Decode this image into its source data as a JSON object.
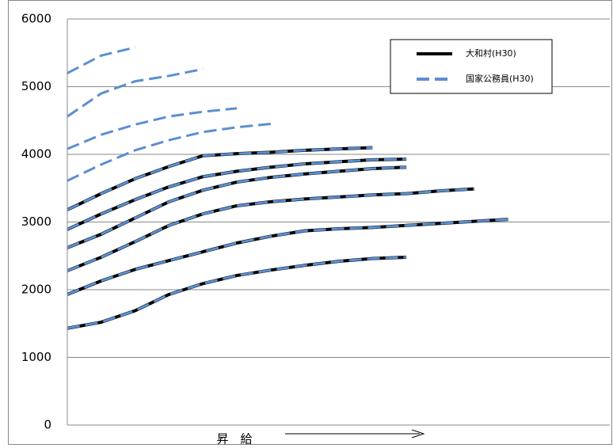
{
  "chart_data": {
    "type": "line",
    "x_label": "昇　給",
    "x": [
      0,
      1,
      2,
      3,
      4,
      5,
      6,
      7,
      8,
      9,
      10,
      11,
      12,
      13
    ],
    "xlim": [
      0,
      16
    ],
    "ylim": [
      0,
      6000
    ],
    "yticks": [
      0,
      1000,
      2000,
      3000,
      4000,
      5000,
      6000
    ],
    "grid": true,
    "legend": "top-right",
    "series": [
      {
        "name": "大和村(H30)",
        "color": "#000000",
        "dashed": false,
        "values": [
          [
            1430,
            1520,
            1690,
            1930,
            2090,
            2210,
            2290,
            2360,
            2420,
            2460,
            2480,
            null,
            null,
            null
          ],
          [
            1930,
            2130,
            2300,
            2430,
            2560,
            2690,
            2790,
            2870,
            2900,
            2920,
            2950,
            2980,
            3010,
            3040
          ],
          [
            2280,
            2480,
            2710,
            2950,
            3120,
            3240,
            3300,
            3340,
            3370,
            3400,
            3420,
            3460,
            3490,
            null
          ],
          [
            2620,
            2820,
            3060,
            3300,
            3470,
            3590,
            3660,
            3710,
            3750,
            3790,
            3810,
            null,
            null,
            null
          ],
          [
            2890,
            3120,
            3330,
            3520,
            3670,
            3750,
            3810,
            3860,
            3890,
            3920,
            3930,
            null,
            null,
            null
          ],
          [
            3180,
            3420,
            3640,
            3820,
            3980,
            4010,
            4030,
            4060,
            4080,
            4100,
            null,
            null,
            null,
            null
          ]
        ]
      },
      {
        "name": "国家公務員(H30)",
        "color": "#5b8fd0",
        "dashed": true,
        "values": [
          [
            1430,
            1520,
            1690,
            1930,
            2090,
            2210,
            2290,
            2360,
            2420,
            2460,
            2480,
            null,
            null,
            null
          ],
          [
            1930,
            2130,
            2300,
            2430,
            2560,
            2690,
            2790,
            2870,
            2900,
            2920,
            2950,
            2980,
            3010,
            3040
          ],
          [
            2280,
            2480,
            2710,
            2950,
            3120,
            3240,
            3300,
            3340,
            3370,
            3400,
            3420,
            3460,
            3490,
            null
          ],
          [
            2620,
            2820,
            3060,
            3300,
            3470,
            3590,
            3660,
            3710,
            3750,
            3790,
            3810,
            null,
            null,
            null
          ],
          [
            2890,
            3120,
            3330,
            3520,
            3670,
            3750,
            3810,
            3860,
            3890,
            3920,
            3930,
            null,
            null,
            null
          ],
          [
            3180,
            3420,
            3640,
            3820,
            3980,
            4010,
            4030,
            4060,
            4080,
            4100,
            null,
            null,
            null,
            null
          ],
          [
            3610,
            3850,
            4060,
            4210,
            4330,
            4400,
            4450,
            null,
            null,
            null,
            null,
            null,
            null,
            null
          ],
          [
            4080,
            4290,
            4440,
            4560,
            4630,
            4680,
            null,
            null,
            null,
            null,
            null,
            null,
            null,
            null
          ],
          [
            4560,
            4900,
            5080,
            5160,
            5260,
            null,
            null,
            null,
            null,
            null,
            null,
            null,
            null,
            null
          ],
          [
            5200,
            5460,
            5580,
            null,
            null,
            null,
            null,
            null,
            null,
            null,
            null,
            null,
            null,
            null
          ]
        ]
      }
    ]
  }
}
